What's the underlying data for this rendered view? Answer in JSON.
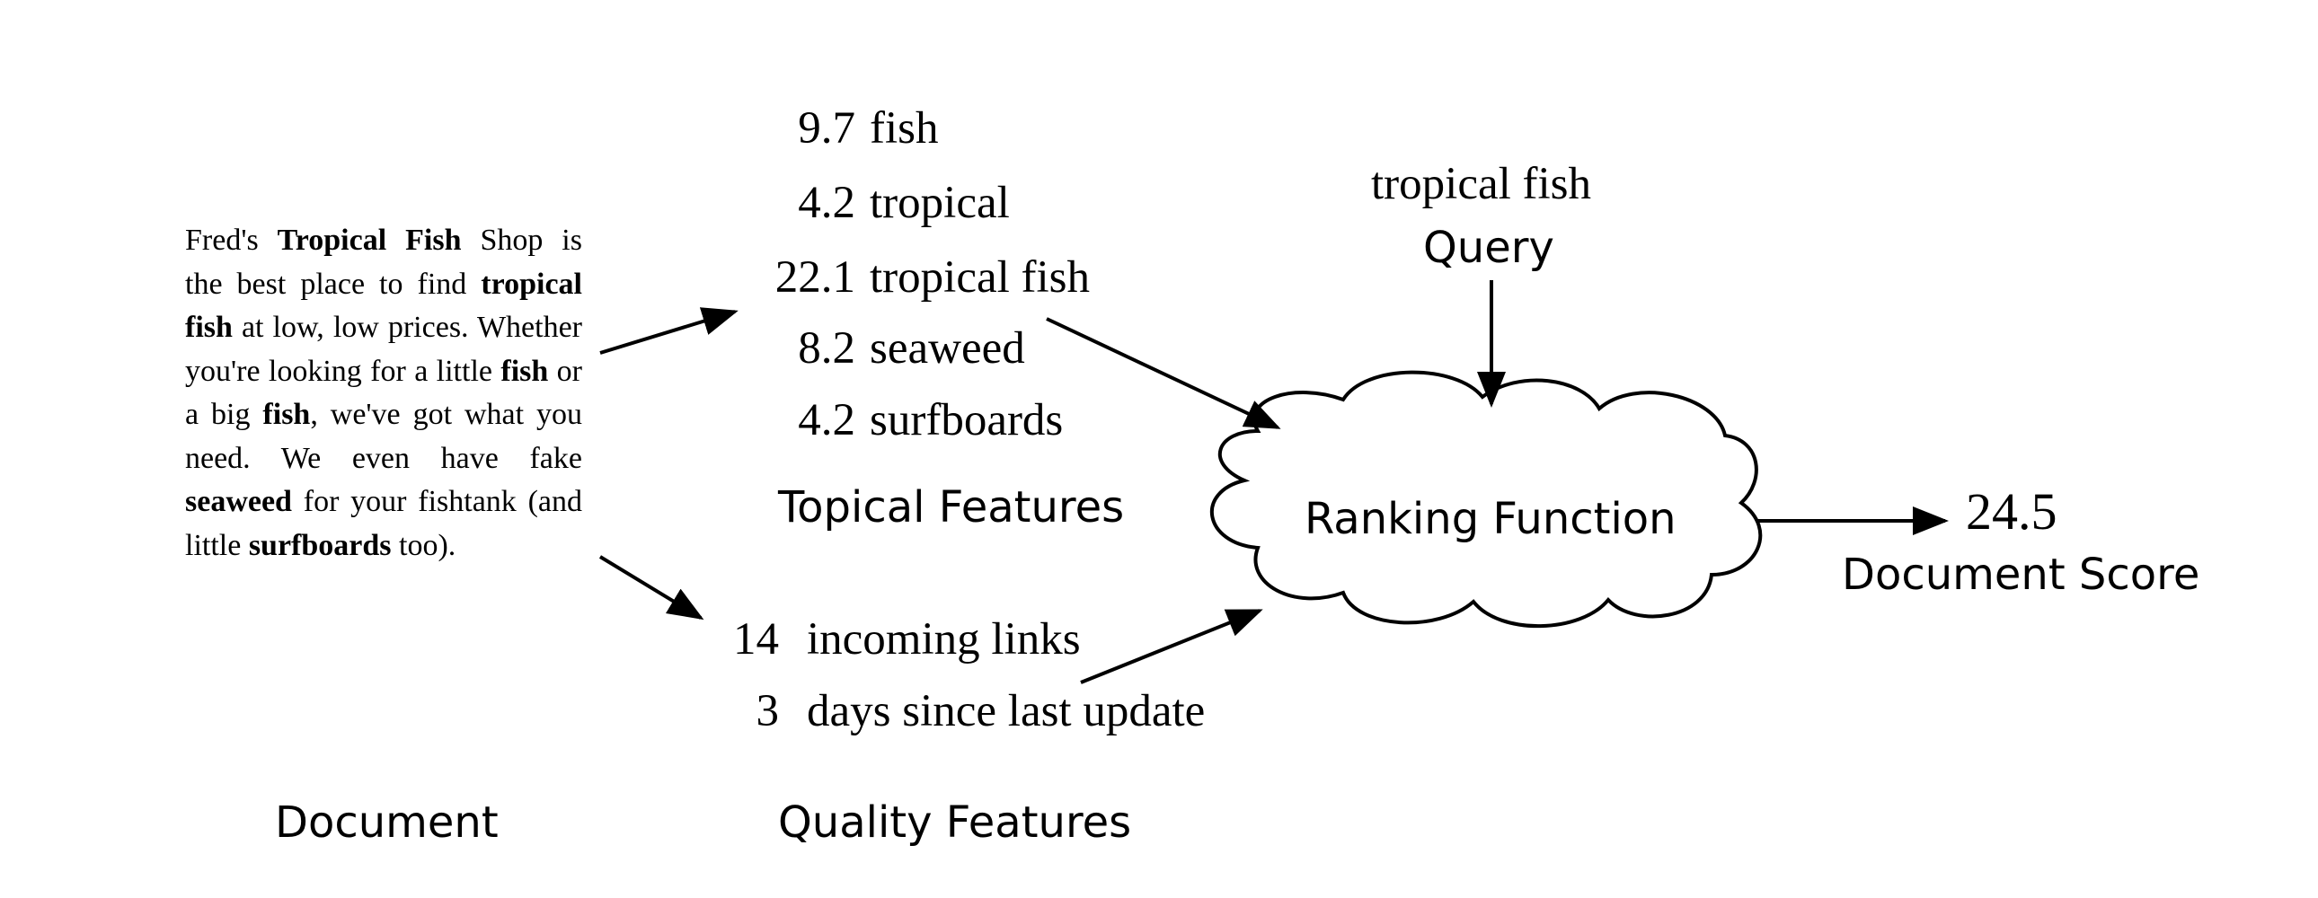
{
  "document": {
    "caption": "Document",
    "text_parts": [
      {
        "t": "Fred's ",
        "b": false
      },
      {
        "t": "Tropical Fish",
        "b": true
      },
      {
        "t": " Shop is the best place to find ",
        "b": false
      },
      {
        "t": "tropical fish",
        "b": true
      },
      {
        "t": " at low, low prices.  Whether you're looking for a little ",
        "b": false
      },
      {
        "t": "fish",
        "b": true
      },
      {
        "t": " or a big ",
        "b": false
      },
      {
        "t": "fish",
        "b": true
      },
      {
        "t": ", we've got what you need.  We even have fake ",
        "b": false
      },
      {
        "t": "seaweed",
        "b": true
      },
      {
        "t": " for your fishtank (and little ",
        "b": false
      },
      {
        "t": "surfboards",
        "b": true
      },
      {
        "t": " too).",
        "b": false
      }
    ]
  },
  "topical_features": {
    "caption": "Topical Features",
    "items": [
      {
        "value": "9.7",
        "label": "fish"
      },
      {
        "value": "4.2",
        "label": "tropical"
      },
      {
        "value": "22.1",
        "label": "tropical fish"
      },
      {
        "value": "8.2",
        "label": "seaweed"
      },
      {
        "value": "4.2",
        "label": "surfboards"
      }
    ]
  },
  "quality_features": {
    "caption": "Quality Features",
    "items": [
      {
        "value": "14",
        "label": "incoming links"
      },
      {
        "value": "3",
        "label": "days since last update"
      }
    ]
  },
  "query": {
    "text": "tropical fish",
    "caption": "Query"
  },
  "ranking_function": {
    "label": "Ranking Function"
  },
  "document_score": {
    "value": "24.5",
    "caption": "Document Score"
  },
  "colors": {
    "ink": "#000000",
    "background": "#ffffff"
  }
}
